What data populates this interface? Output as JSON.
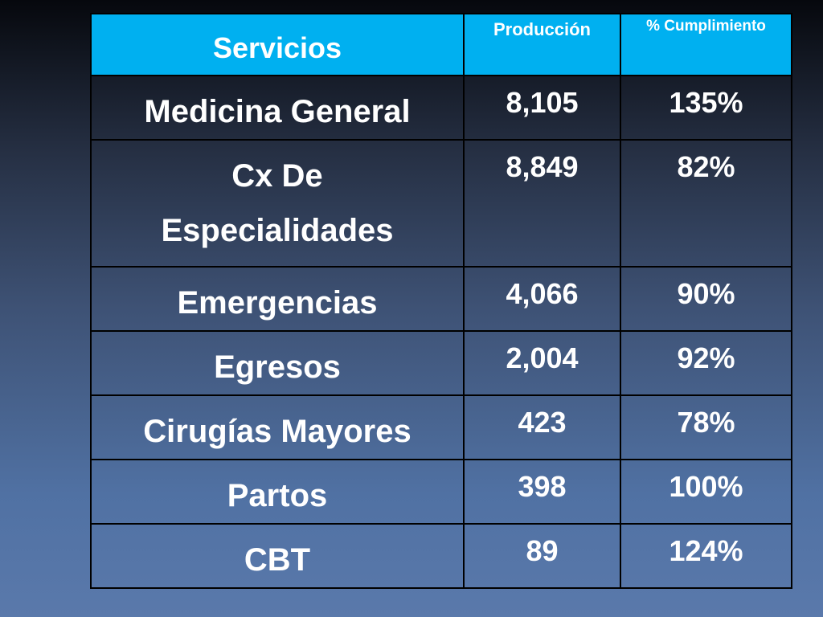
{
  "table": {
    "header": [
      "Servicios",
      "Producción",
      "% Cumplimiento"
    ],
    "rows": [
      [
        "Medicina General",
        "8,105",
        "135%"
      ],
      [
        "Cx De Especialidades",
        "8,849",
        "82%"
      ],
      [
        "Emergencias",
        "4,066",
        "90%"
      ],
      [
        "Egresos",
        "2,004",
        "92%"
      ],
      [
        "Cirugías Mayores",
        "423",
        "78%"
      ],
      [
        "Partos",
        "398",
        "100%"
      ],
      [
        "CBT",
        "89",
        "124%"
      ]
    ]
  }
}
